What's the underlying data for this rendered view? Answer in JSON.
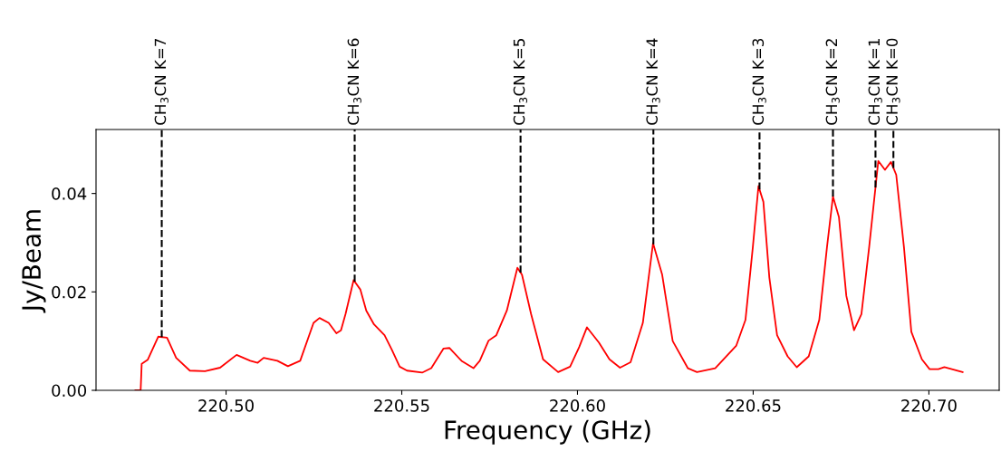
{
  "chart_data": {
    "type": "line",
    "xlabel": "Frequency (GHz)",
    "ylabel": "Jy/Beam",
    "x": [
      220.4742,
      220.4757,
      220.476,
      220.4777,
      220.4807,
      220.4832,
      220.4858,
      220.4897,
      220.494,
      220.4983,
      220.503,
      220.5069,
      220.509,
      220.5107,
      220.5146,
      220.5176,
      220.5211,
      220.5249,
      220.5266,
      220.5292,
      220.5314,
      220.5327,
      220.534,
      220.5363,
      220.5382,
      220.5399,
      220.5421,
      220.5451,
      220.5472,
      220.5494,
      220.5515,
      220.5558,
      220.5584,
      220.5619,
      220.5636,
      220.567,
      220.5704,
      220.5722,
      220.5747,
      220.5769,
      220.5799,
      220.5829,
      220.5842,
      220.5868,
      220.5902,
      220.5945,
      220.5979,
      220.6005,
      220.6027,
      220.6061,
      220.6091,
      220.6121,
      220.6151,
      220.6186,
      220.6215,
      220.6241,
      220.6271,
      220.6314,
      220.634,
      220.6392,
      220.6452,
      220.6478,
      220.6499,
      220.6515,
      220.6529,
      220.6546,
      220.6568,
      220.6598,
      220.6624,
      220.6658,
      220.6688,
      220.671,
      220.6727,
      220.6744,
      220.6765,
      220.6787,
      220.6808,
      220.683,
      220.6856,
      220.6875,
      220.6892,
      220.6907,
      220.6929,
      220.695,
      220.698,
      220.7002,
      220.7027,
      220.7044,
      220.707,
      220.7096
    ],
    "series": [
      {
        "color": "#ff0000",
        "values": [
          0,
          0,
          0.0054,
          0.0062,
          0.0109,
          0.0107,
          0.0066,
          0.004,
          0.0039,
          0.0046,
          0.0072,
          0.006,
          0.0056,
          0.0066,
          0.006,
          0.0049,
          0.006,
          0.0137,
          0.0147,
          0.0137,
          0.0116,
          0.0122,
          0.0155,
          0.0224,
          0.0205,
          0.0162,
          0.0134,
          0.0112,
          0.0082,
          0.0048,
          0.004,
          0.0036,
          0.0045,
          0.0085,
          0.0086,
          0.006,
          0.0045,
          0.006,
          0.0101,
          0.0112,
          0.0162,
          0.0249,
          0.0235,
          0.0155,
          0.0063,
          0.0037,
          0.0048,
          0.0088,
          0.0128,
          0.0097,
          0.0063,
          0.0046,
          0.0057,
          0.0137,
          0.0299,
          0.0235,
          0.01,
          0.0045,
          0.0037,
          0.0045,
          0.0091,
          0.0143,
          0.0291,
          0.0415,
          0.0383,
          0.0229,
          0.0112,
          0.0069,
          0.0047,
          0.0069,
          0.0143,
          0.0291,
          0.0394,
          0.0352,
          0.0192,
          0.0122,
          0.0155,
          0.0291,
          0.0466,
          0.0448,
          0.0464,
          0.0438,
          0.0291,
          0.0119,
          0.0063,
          0.0043,
          0.0043,
          0.0047,
          0.0042,
          0.0037
        ]
      }
    ],
    "xlim": [
      220.463,
      220.72
    ],
    "ylim": [
      0,
      0.053
    ],
    "xticks": [
      {
        "value": 220.5,
        "label": "220.50"
      },
      {
        "value": 220.55,
        "label": "220.55"
      },
      {
        "value": 220.6,
        "label": "220.60"
      },
      {
        "value": 220.65,
        "label": "220.65"
      },
      {
        "value": 220.7,
        "label": "220.70"
      }
    ],
    "yticks": [
      {
        "value": 0,
        "label": "0.00"
      },
      {
        "value": 0.02,
        "label": "0.02"
      },
      {
        "value": 0.04,
        "label": "0.04"
      }
    ],
    "ref_lines": [
      {
        "axis": "x",
        "value": 220.4817,
        "color": "#000000",
        "line_style": "dashed"
      },
      {
        "axis": "x",
        "value": 220.5366,
        "color": "#000000",
        "line_style": "dashed"
      },
      {
        "axis": "x",
        "value": 220.5838,
        "color": "#000000",
        "line_style": "dashed"
      },
      {
        "axis": "x",
        "value": 220.6216,
        "color": "#000000",
        "line_style": "dashed"
      },
      {
        "axis": "x",
        "value": 220.6518,
        "color": "#000000",
        "line_style": "dashed"
      },
      {
        "axis": "x",
        "value": 220.6727,
        "color": "#000000",
        "line_style": "dashed"
      },
      {
        "axis": "x",
        "value": 220.6848,
        "color": "#000000",
        "line_style": "dashed"
      },
      {
        "axis": "x",
        "value": 220.6899,
        "color": "#000000",
        "line_style": "dashed"
      }
    ],
    "annotations": [
      "CH$_{3}$CN K=7",
      "CH$_{3}$CN K=6",
      "CH$_{3}$CN K=5",
      "CH$_{3}$CN K=4",
      "CH$_{3}$CN K=3",
      "CH$_{3}$CN K=2",
      "CH$_{3}$CN K=1",
      "CH$_{3}$CN K=0"
    ],
    "grid": false,
    "legend": false
  }
}
